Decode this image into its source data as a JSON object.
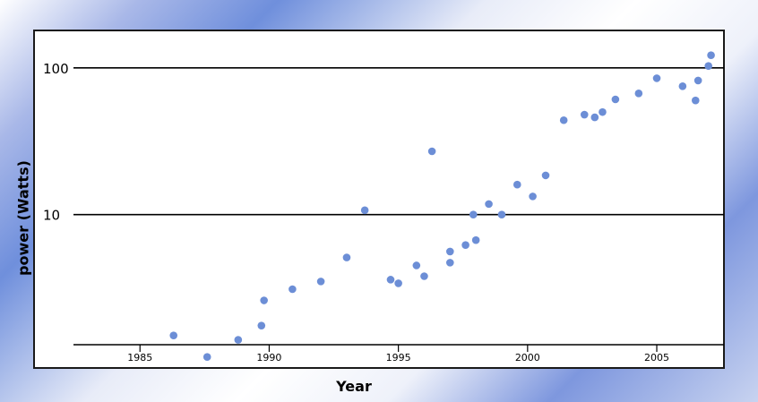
{
  "chart_data": {
    "type": "scatter",
    "title": "",
    "xlabel": "Year",
    "ylabel": "power (Watts)",
    "x_ticks": [
      1985,
      1990,
      1995,
      2000,
      2005
    ],
    "y_ticks": [
      {
        "value": 10,
        "label": "10"
      },
      {
        "value": 100,
        "label": "100"
      }
    ],
    "y_scale": "log",
    "xlim": [
      1980.9,
      2007.6
    ],
    "ylim": [
      0.9,
      180
    ],
    "grid": "horizontal lines at 10 and 100",
    "point_color": "#6c8ed6",
    "points": [
      {
        "x": 1986.3,
        "y": 1.5
      },
      {
        "x": 1987.6,
        "y": 1.07
      },
      {
        "x": 1988.8,
        "y": 1.4
      },
      {
        "x": 1989.7,
        "y": 1.75
      },
      {
        "x": 1989.8,
        "y": 2.6
      },
      {
        "x": 1990.9,
        "y": 3.1
      },
      {
        "x": 1992.0,
        "y": 3.5
      },
      {
        "x": 1993.0,
        "y": 5.1
      },
      {
        "x": 1993.7,
        "y": 10.7
      },
      {
        "x": 1994.7,
        "y": 3.6
      },
      {
        "x": 1995.0,
        "y": 3.4
      },
      {
        "x": 1995.7,
        "y": 4.5
      },
      {
        "x": 1996.0,
        "y": 3.8
      },
      {
        "x": 1996.3,
        "y": 27
      },
      {
        "x": 1997.0,
        "y": 5.6
      },
      {
        "x": 1997.0,
        "y": 4.7
      },
      {
        "x": 1997.6,
        "y": 6.2
      },
      {
        "x": 1997.9,
        "y": 10
      },
      {
        "x": 1998.0,
        "y": 6.7
      },
      {
        "x": 1998.5,
        "y": 11.8
      },
      {
        "x": 1999.0,
        "y": 10
      },
      {
        "x": 1999.6,
        "y": 16
      },
      {
        "x": 2000.2,
        "y": 13.3
      },
      {
        "x": 2000.7,
        "y": 18.5
      },
      {
        "x": 2001.4,
        "y": 44
      },
      {
        "x": 2002.2,
        "y": 48
      },
      {
        "x": 2002.6,
        "y": 46
      },
      {
        "x": 2002.9,
        "y": 50
      },
      {
        "x": 2003.4,
        "y": 61
      },
      {
        "x": 2004.3,
        "y": 67
      },
      {
        "x": 2005.0,
        "y": 85
      },
      {
        "x": 2006.0,
        "y": 75
      },
      {
        "x": 2006.5,
        "y": 60
      },
      {
        "x": 2006.6,
        "y": 82
      },
      {
        "x": 2007.0,
        "y": 103
      },
      {
        "x": 2007.1,
        "y": 122
      }
    ]
  }
}
